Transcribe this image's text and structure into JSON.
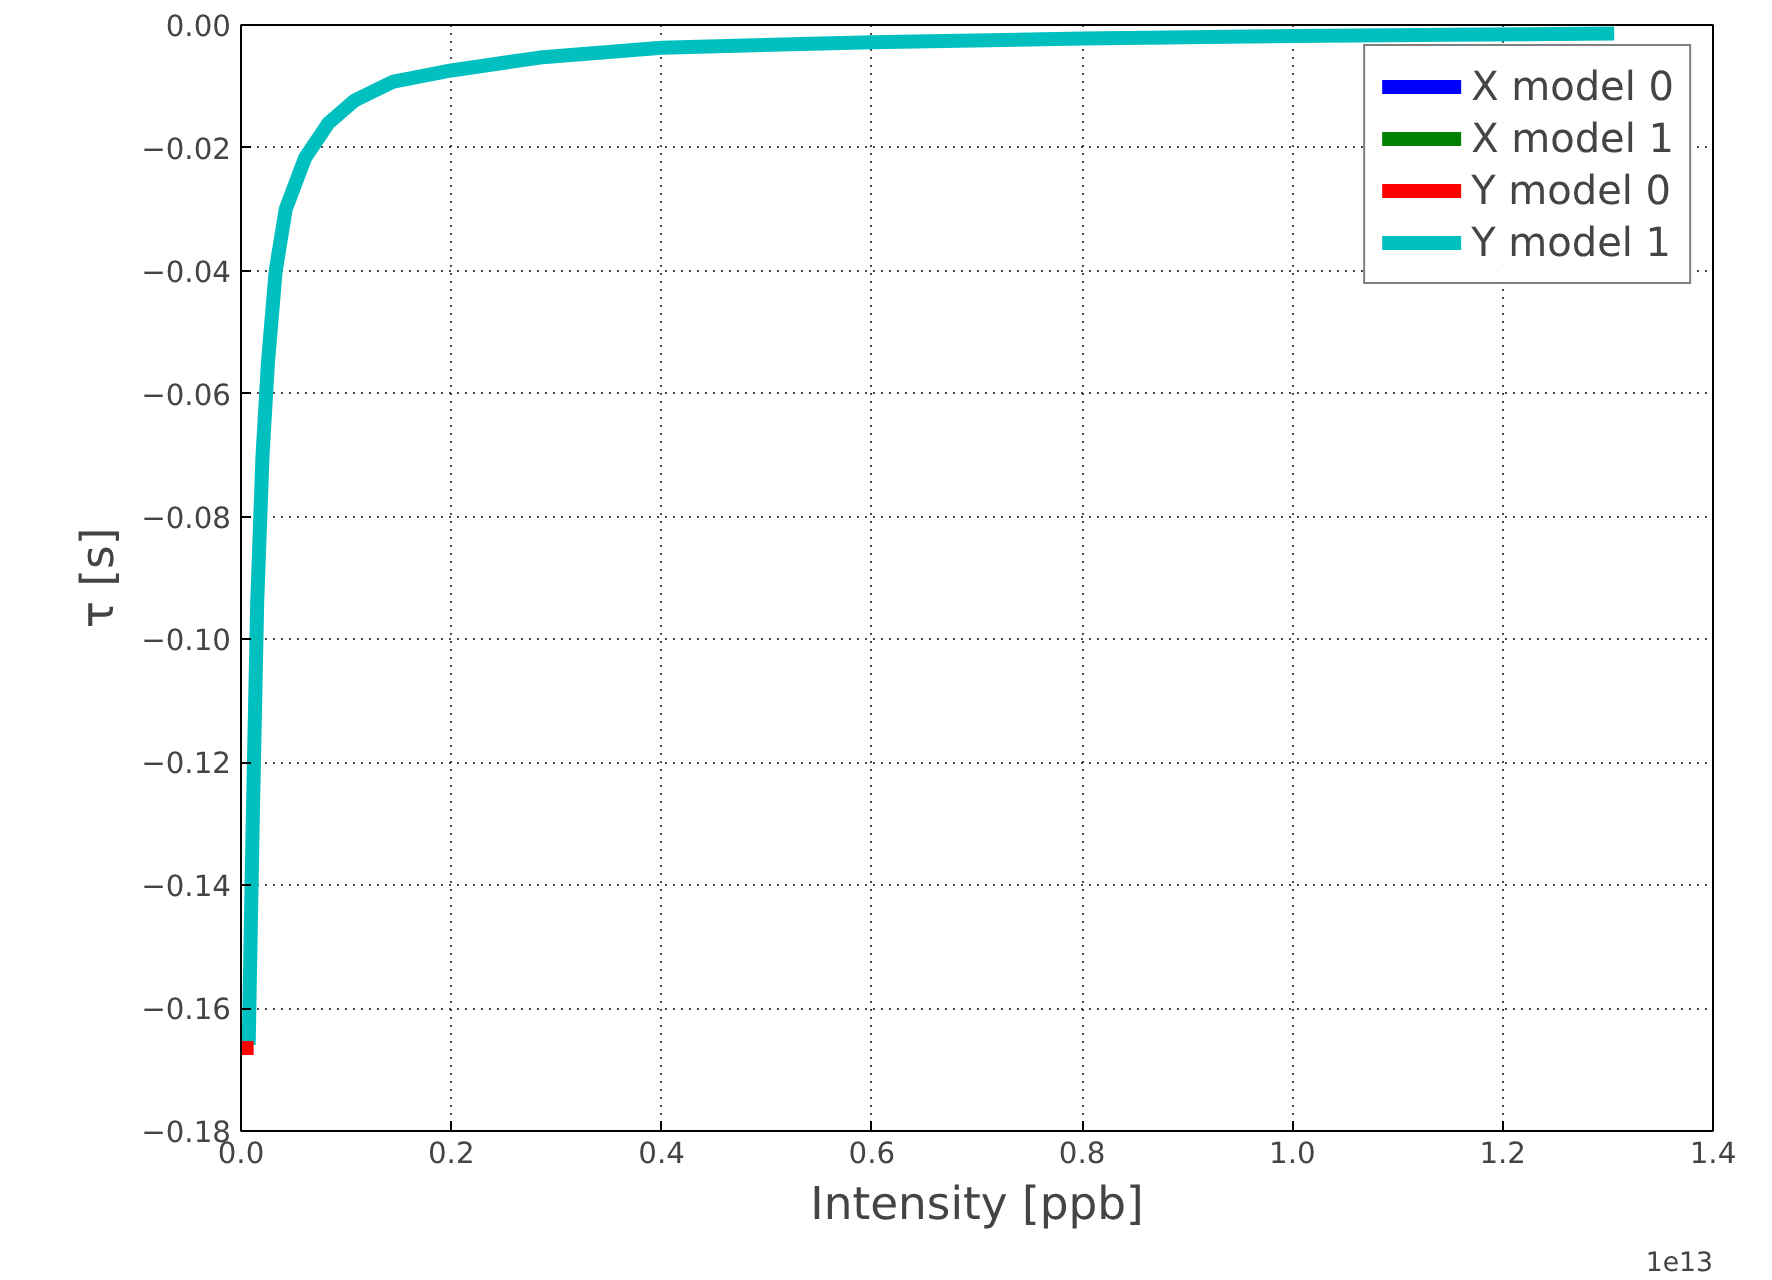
{
  "chart_data": {
    "type": "line",
    "xlabel": "Intensity [ppb]",
    "ylabel": "τ [s]",
    "x": [
      0.0073,
      0.011,
      0.0154,
      0.0205,
      0.0256,
      0.033,
      0.0425,
      0.061,
      0.083,
      0.108,
      0.145,
      0.2,
      0.284,
      0.4,
      0.6,
      0.8,
      1.0,
      1.15,
      1.306
    ],
    "series": [
      {
        "name": "X model 0",
        "color": "#0000ff",
        "values": [
          null,
          null,
          null,
          null,
          null,
          null,
          null,
          null,
          null,
          null,
          null,
          null,
          null,
          null,
          null,
          null,
          null,
          null,
          null
        ]
      },
      {
        "name": "X model 1",
        "color": "#008000",
        "values": [
          null,
          null,
          null,
          null,
          null,
          null,
          null,
          null,
          null,
          null,
          null,
          null,
          null,
          null,
          null,
          null,
          null,
          null,
          null
        ]
      },
      {
        "name": "Y model 0",
        "color": "#ff0000",
        "x": [
          0.001,
          0.012
        ],
        "values": [
          -0.1665,
          -0.1665
        ]
      },
      {
        "name": "Y model 1",
        "color": "#00bfbf",
        "values": [
          -0.166,
          -0.131,
          -0.094,
          -0.07,
          -0.055,
          -0.04,
          -0.03,
          -0.0216,
          -0.016,
          -0.0123,
          -0.0092,
          -0.0074,
          -0.0053,
          -0.0037,
          -0.0028,
          -0.0022,
          -0.0018,
          -0.0016,
          -0.0014
        ]
      }
    ],
    "xlim": [
      0.0,
      1.4
    ],
    "xticks": [
      {
        "value": 0,
        "label": "0.0"
      },
      0.2,
      0.4,
      0.6,
      0.8,
      {
        "value": 1,
        "label": "1.0"
      },
      1.2,
      1.4
    ],
    "ylim": [
      -0.18,
      0.0
    ],
    "yticks": [
      {
        "value": -0.18,
        "label": "−0.18"
      },
      {
        "value": -0.16,
        "label": "−0.16"
      },
      {
        "value": -0.14,
        "label": "−0.14"
      },
      {
        "value": -0.12,
        "label": "−0.12"
      },
      {
        "value": -0.1,
        "label": "−0.10"
      },
      {
        "value": -0.08,
        "label": "−0.08"
      },
      {
        "value": -0.06,
        "label": "−0.06"
      },
      {
        "value": -0.04,
        "label": "−0.04"
      },
      {
        "value": -0.02,
        "label": "−0.02"
      },
      {
        "value": 0,
        "label": "0.00"
      }
    ],
    "annotations": [
      "1e13"
    ],
    "grid": true,
    "legend": "top right",
    "line_style": "solid",
    "marker": "none"
  }
}
